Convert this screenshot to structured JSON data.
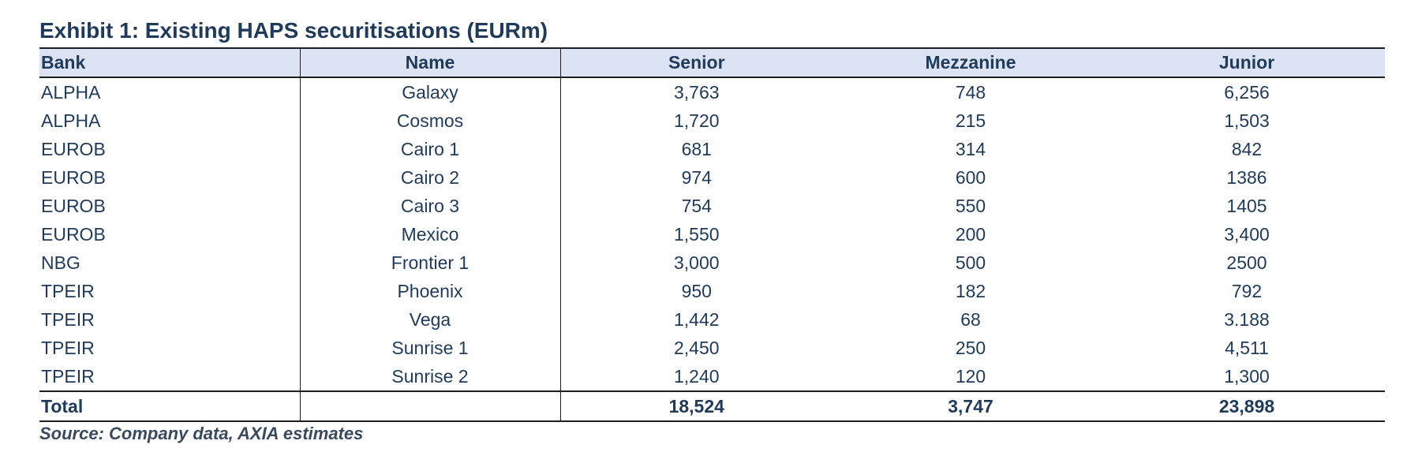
{
  "title": "Exhibit 1: Existing HAPS securitisations (EURm)",
  "columns": [
    "Bank",
    "Name",
    "Senior",
    "Mezzanine",
    "Junior"
  ],
  "rows": [
    {
      "bank": "ALPHA",
      "name": "Galaxy",
      "senior": "3,763",
      "mezzanine": "748",
      "junior": "6,256"
    },
    {
      "bank": "ALPHA",
      "name": "Cosmos",
      "senior": "1,720",
      "mezzanine": "215",
      "junior": "1,503"
    },
    {
      "bank": "EUROB",
      "name": "Cairo 1",
      "senior": "681",
      "mezzanine": "314",
      "junior": "842"
    },
    {
      "bank": "EUROB",
      "name": "Cairo 2",
      "senior": "974",
      "mezzanine": "600",
      "junior": "1386"
    },
    {
      "bank": "EUROB",
      "name": "Cairo 3",
      "senior": "754",
      "mezzanine": "550",
      "junior": "1405"
    },
    {
      "bank": "EUROB",
      "name": "Mexico",
      "senior": "1,550",
      "mezzanine": "200",
      "junior": "3,400"
    },
    {
      "bank": "NBG",
      "name": "Frontier 1",
      "senior": "3,000",
      "mezzanine": "500",
      "junior": "2500"
    },
    {
      "bank": "TPEIR",
      "name": "Phoenix",
      "senior": "950",
      "mezzanine": "182",
      "junior": "792"
    },
    {
      "bank": "TPEIR",
      "name": "Vega",
      "senior": "1,442",
      "mezzanine": "68",
      "junior": "3.188"
    },
    {
      "bank": "TPEIR",
      "name": "Sunrise 1",
      "senior": "2,450",
      "mezzanine": "250",
      "junior": "4,511"
    },
    {
      "bank": "TPEIR",
      "name": "Sunrise 2",
      "senior": "1,240",
      "mezzanine": "120",
      "junior": "1,300"
    }
  ],
  "total": {
    "label": "Total",
    "name": "",
    "senior": "18,524",
    "mezzanine": "3,747",
    "junior": "23,898"
  },
  "source": "Source: Company data, AXIA estimates",
  "colors": {
    "text": "#1f3a5a",
    "header_bg": "#dbe3f4",
    "rule": "#1f1f1f"
  }
}
